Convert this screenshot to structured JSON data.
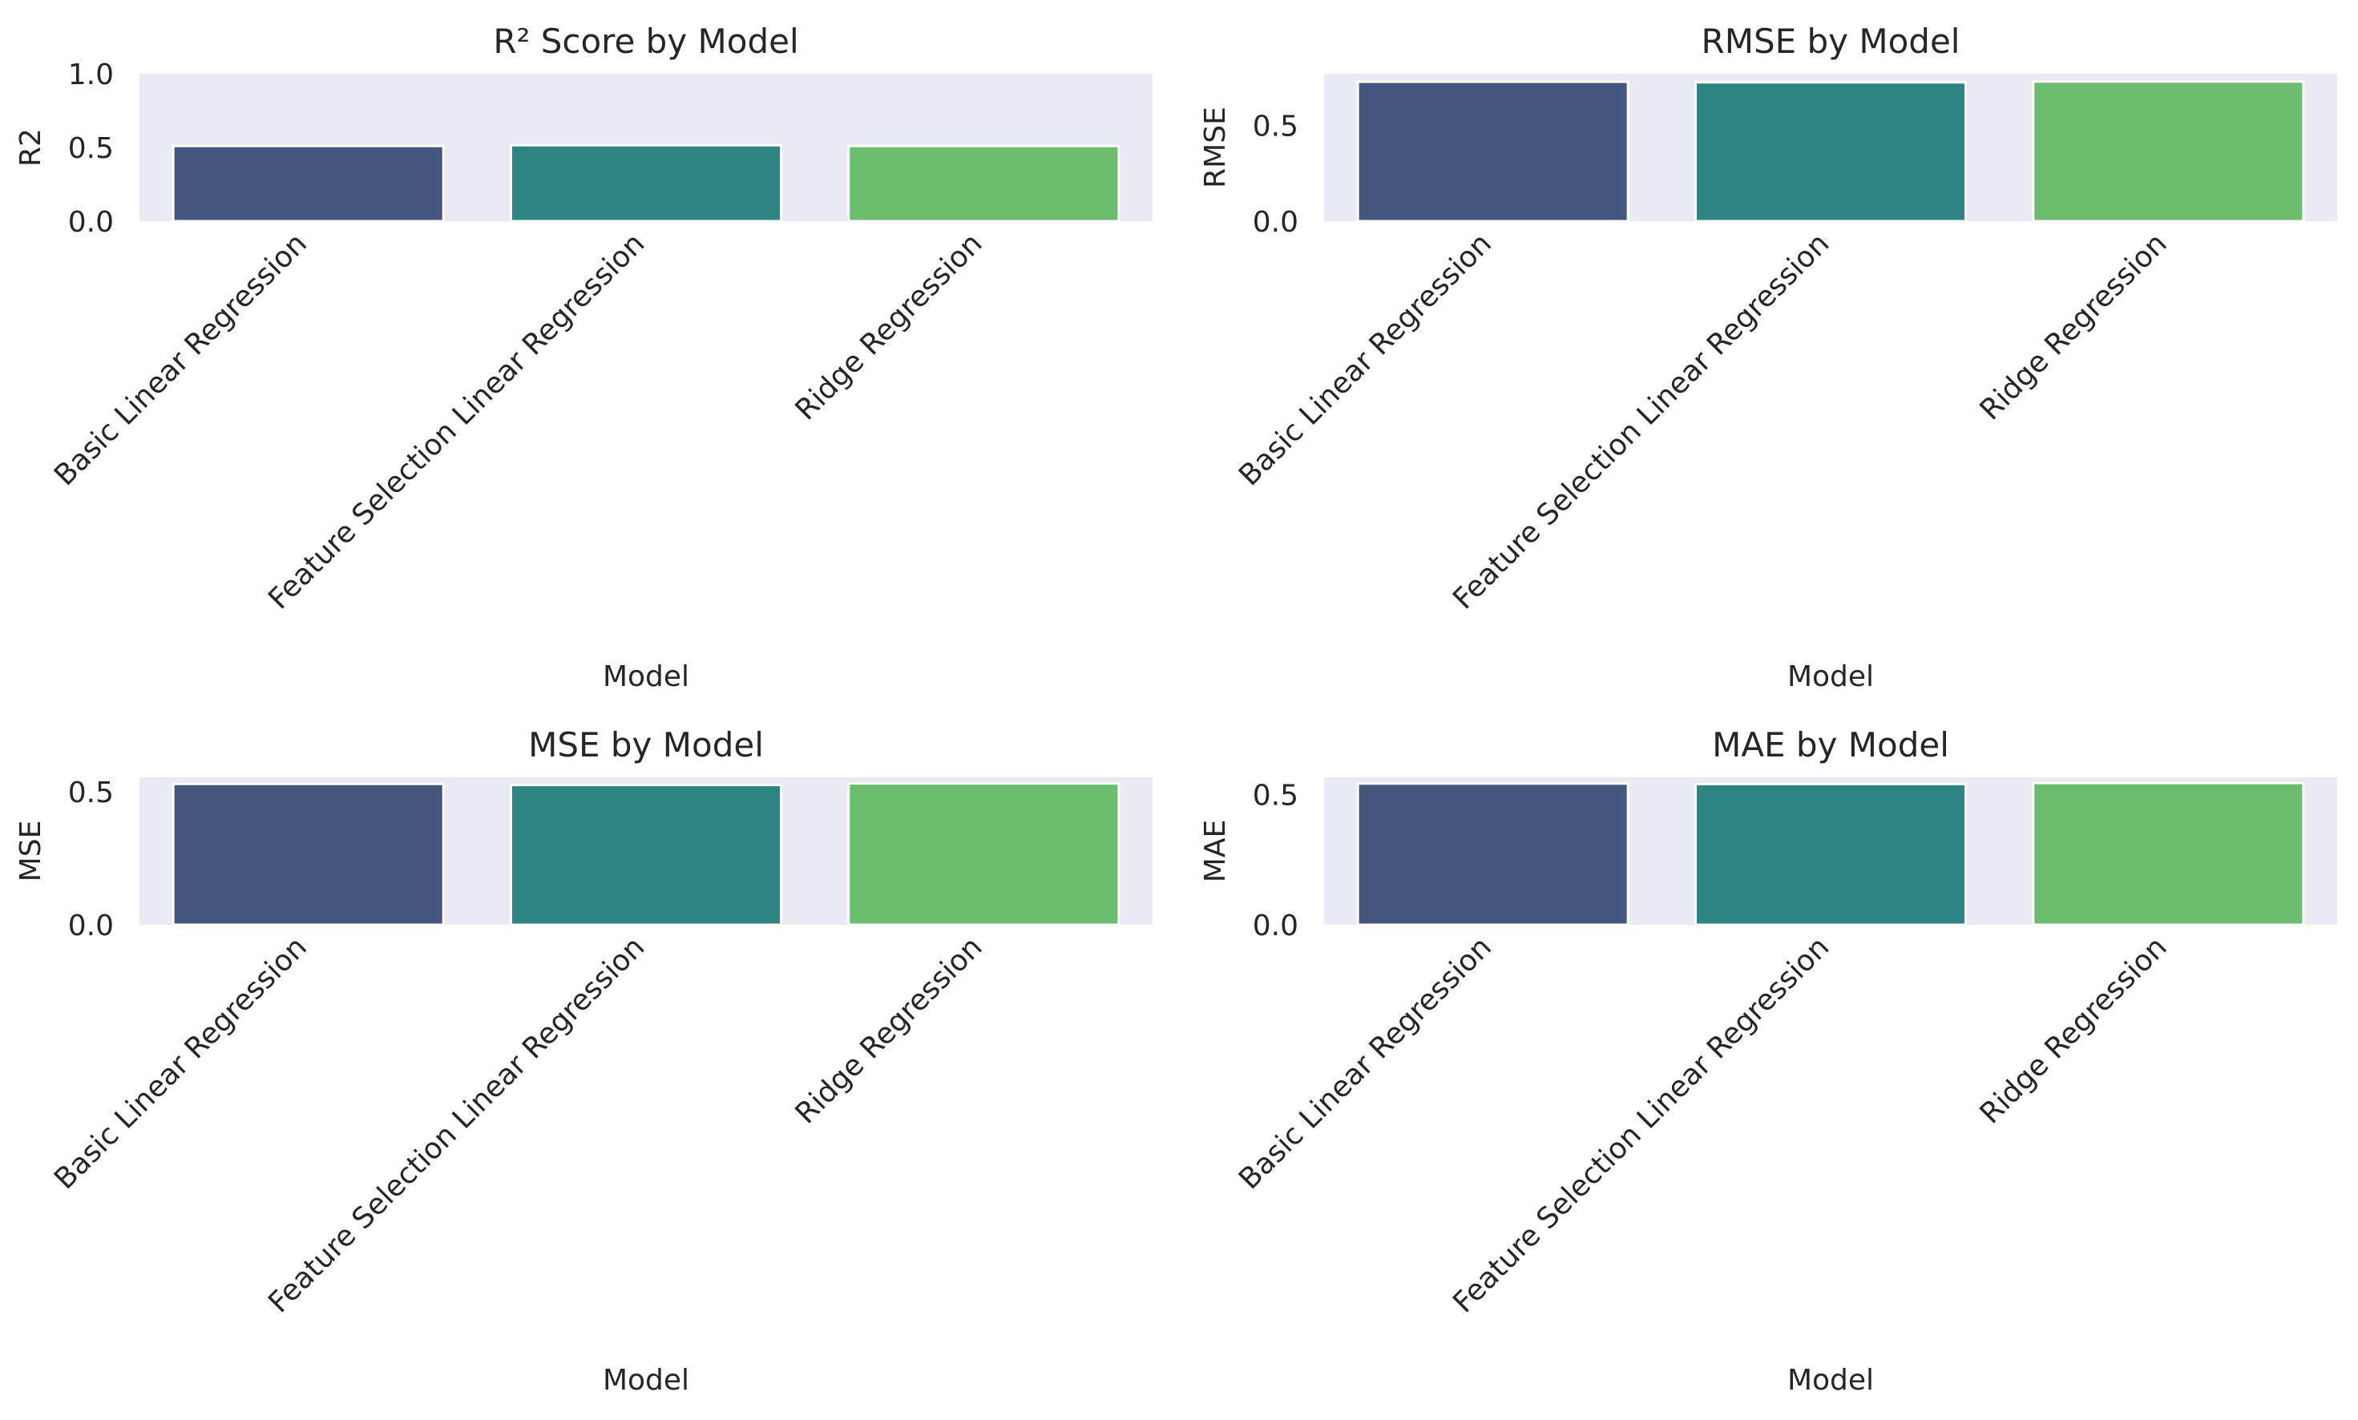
{
  "chart_data": [
    {
      "type": "bar",
      "title": "R² Score by Model",
      "xlabel": "Model",
      "ylabel": "R2",
      "ylim": [
        0,
        1.0
      ],
      "yticks": [
        "0.0",
        "0.5",
        "1.0"
      ],
      "categories": [
        "Basic Linear Regression",
        "Feature Selection Linear Regression",
        "Ridge Regression"
      ],
      "values": [
        0.51,
        0.515,
        0.51
      ],
      "colors": [
        "#46577f",
        "#2e8480",
        "#6bbd6e"
      ],
      "grid": false
    },
    {
      "type": "bar",
      "title": "RMSE by Model",
      "xlabel": "Model",
      "ylabel": "RMSE",
      "ylim": [
        0,
        0.77
      ],
      "yticks": [
        "0.0",
        "0.5"
      ],
      "categories": [
        "Basic Linear Regression",
        "Feature Selection Linear Regression",
        "Ridge Regression"
      ],
      "values": [
        0.728,
        0.725,
        0.729
      ],
      "colors": [
        "#46577f",
        "#2e8480",
        "#6bbd6e"
      ],
      "grid": false
    },
    {
      "type": "bar",
      "title": "MSE by Model",
      "xlabel": "Model",
      "ylabel": "MSE",
      "ylim": [
        0,
        0.555
      ],
      "yticks": [
        "0.0",
        "0.5"
      ],
      "categories": [
        "Basic Linear Regression",
        "Feature Selection Linear Regression",
        "Ridge Regression"
      ],
      "values": [
        0.53,
        0.526,
        0.532
      ],
      "colors": [
        "#46577f",
        "#2e8480",
        "#6bbd6e"
      ],
      "grid": false
    },
    {
      "type": "bar",
      "title": "MAE by Model",
      "xlabel": "Model",
      "ylabel": "MAE",
      "ylim": [
        0,
        0.567
      ],
      "yticks": [
        "0.0",
        "0.5"
      ],
      "categories": [
        "Basic Linear Regression",
        "Feature Selection Linear Regression",
        "Ridge Regression"
      ],
      "values": [
        0.543,
        0.541,
        0.545
      ],
      "colors": [
        "#46577f",
        "#2e8480",
        "#6bbd6e"
      ],
      "grid": false
    }
  ],
  "colors": {
    "plot_background": "#eaeaf2",
    "bar_edge": "#ffffff",
    "text": "#262626"
  }
}
